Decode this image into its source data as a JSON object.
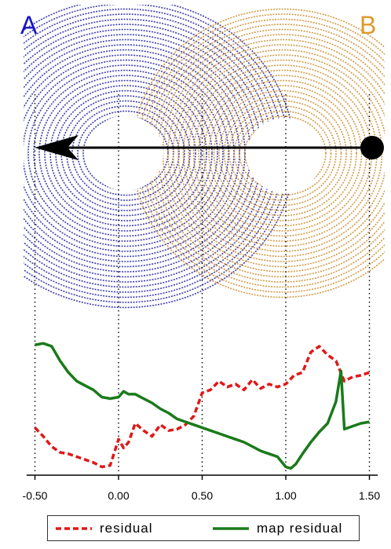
{
  "labels": {
    "a": "A",
    "b": "B"
  },
  "colors": {
    "residual": "#e01818",
    "map_residual": "#1a7a1a",
    "cloud_a": "#1c1ca0",
    "cloud_b": "#c88a26"
  },
  "chart_data": {
    "type": "line",
    "title": "",
    "xlabel": "",
    "ylabel": "",
    "xlim": [
      -0.55,
      1.55
    ],
    "x_ticks": [
      -0.5,
      0.0,
      0.5,
      1.0,
      1.5
    ],
    "x_tick_labels": [
      "-0.50",
      "0.00",
      "0.50",
      "1.00",
      "1.50"
    ],
    "ylim": [
      0,
      1
    ],
    "grid": "vertical dotted at ticks",
    "legend": "bottom-center",
    "series": [
      {
        "name": "residual",
        "style": "dashed",
        "x": [
          -0.5,
          -0.45,
          -0.4,
          -0.35,
          -0.3,
          -0.25,
          -0.2,
          -0.15,
          -0.1,
          -0.05,
          0.0,
          0.03,
          0.06,
          0.1,
          0.15,
          0.2,
          0.25,
          0.3,
          0.35,
          0.4,
          0.45,
          0.5,
          0.55,
          0.6,
          0.65,
          0.7,
          0.75,
          0.8,
          0.85,
          0.9,
          0.95,
          1.0,
          1.05,
          1.1,
          1.15,
          1.2,
          1.25,
          1.3,
          1.35,
          1.4,
          1.45,
          1.5
        ],
        "y": [
          0.3,
          0.24,
          0.17,
          0.13,
          0.12,
          0.1,
          0.08,
          0.06,
          0.03,
          0.04,
          0.22,
          0.16,
          0.2,
          0.33,
          0.28,
          0.24,
          0.32,
          0.28,
          0.29,
          0.32,
          0.38,
          0.54,
          0.56,
          0.62,
          0.58,
          0.6,
          0.56,
          0.63,
          0.57,
          0.6,
          0.58,
          0.6,
          0.66,
          0.68,
          0.82,
          0.86,
          0.8,
          0.76,
          0.62,
          0.65,
          0.66,
          0.68
        ]
      },
      {
        "name": "map residual",
        "style": "solid",
        "x": [
          -0.5,
          -0.45,
          -0.4,
          -0.35,
          -0.3,
          -0.25,
          -0.2,
          -0.15,
          -0.1,
          -0.05,
          0.0,
          0.03,
          0.06,
          0.1,
          0.15,
          0.2,
          0.25,
          0.3,
          0.35,
          0.4,
          0.45,
          0.5,
          0.55,
          0.6,
          0.65,
          0.7,
          0.75,
          0.8,
          0.85,
          0.9,
          0.95,
          1.0,
          1.03,
          1.06,
          1.1,
          1.15,
          1.2,
          1.25,
          1.3,
          1.33,
          1.35,
          1.4,
          1.45,
          1.5
        ],
        "y": [
          0.87,
          0.88,
          0.86,
          0.76,
          0.68,
          0.62,
          0.59,
          0.56,
          0.51,
          0.5,
          0.51,
          0.55,
          0.53,
          0.53,
          0.5,
          0.47,
          0.43,
          0.4,
          0.36,
          0.34,
          0.32,
          0.3,
          0.28,
          0.26,
          0.24,
          0.22,
          0.2,
          0.17,
          0.14,
          0.12,
          0.1,
          0.03,
          0.02,
          0.05,
          0.12,
          0.2,
          0.27,
          0.33,
          0.48,
          0.69,
          0.29,
          0.31,
          0.33,
          0.34
        ]
      }
    ]
  }
}
